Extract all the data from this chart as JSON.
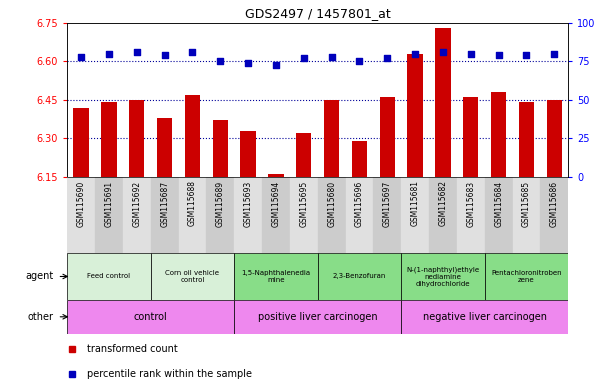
{
  "title": "GDS2497 / 1457801_at",
  "samples": [
    "GSM115690",
    "GSM115691",
    "GSM115692",
    "GSM115687",
    "GSM115688",
    "GSM115689",
    "GSM115693",
    "GSM115694",
    "GSM115695",
    "GSM115680",
    "GSM115696",
    "GSM115697",
    "GSM115681",
    "GSM115682",
    "GSM115683",
    "GSM115684",
    "GSM115685",
    "GSM115686"
  ],
  "transformed_count": [
    6.42,
    6.44,
    6.45,
    6.38,
    6.47,
    6.37,
    6.33,
    6.16,
    6.32,
    6.45,
    6.29,
    6.46,
    6.63,
    6.73,
    6.46,
    6.48,
    6.44,
    6.45
  ],
  "percentile_rank": [
    78,
    80,
    81,
    79,
    81,
    75,
    74,
    73,
    77,
    78,
    75,
    77,
    80,
    81,
    80,
    79,
    79,
    80
  ],
  "ylim_left": [
    6.15,
    6.75
  ],
  "ylim_right": [
    0,
    100
  ],
  "yticks_left": [
    6.15,
    6.3,
    6.45,
    6.6,
    6.75
  ],
  "yticks_right": [
    0,
    25,
    50,
    75,
    100
  ],
  "bar_color": "#CC0000",
  "dot_color": "#0000BB",
  "dotted_line_color": "#000099",
  "agent_groups": [
    {
      "label": "Feed control",
      "start": 0,
      "end": 3,
      "color": "#d8f0d8"
    },
    {
      "label": "Corn oil vehicle\ncontrol",
      "start": 3,
      "end": 6,
      "color": "#d8f0d8"
    },
    {
      "label": "1,5-Naphthalenedia\nmine",
      "start": 6,
      "end": 9,
      "color": "#88dd88"
    },
    {
      "label": "2,3-Benzofuran",
      "start": 9,
      "end": 12,
      "color": "#88dd88"
    },
    {
      "label": "N-(1-naphthyl)ethyle\nnediamine\ndihydrochloride",
      "start": 12,
      "end": 15,
      "color": "#88dd88"
    },
    {
      "label": "Pentachloronitroben\nzene",
      "start": 15,
      "end": 18,
      "color": "#88dd88"
    }
  ],
  "other_groups": [
    {
      "label": "control",
      "start": 0,
      "end": 6,
      "color": "#ee88ee"
    },
    {
      "label": "positive liver carcinogen",
      "start": 6,
      "end": 12,
      "color": "#ee88ee"
    },
    {
      "label": "negative liver carcinogen",
      "start": 12,
      "end": 18,
      "color": "#ee88ee"
    }
  ],
  "background_color": "#ffffff",
  "tick_bg_even": "#e0e0e0",
  "tick_bg_odd": "#cccccc"
}
